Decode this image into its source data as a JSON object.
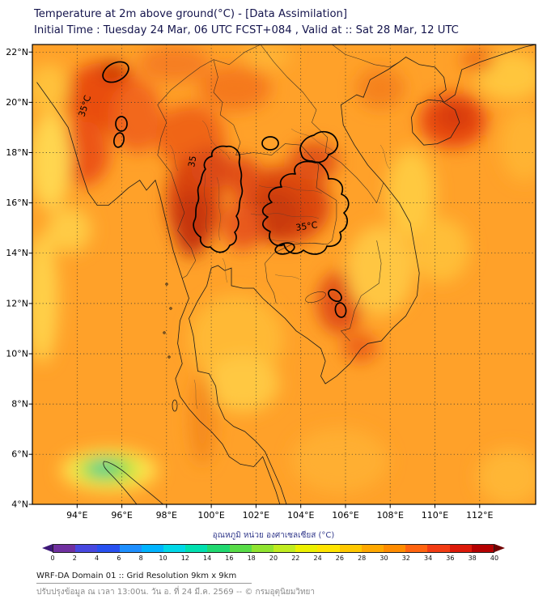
{
  "header": {
    "title": "Temperature at 2m above ground(°C) - [Data Assimilation]",
    "subtitle": "Initial Time : Tuesday 24 Mar, 06 UTC FCST+084 , Valid at :: Sat 28 Mar, 12 UTC"
  },
  "map": {
    "y_ticks": [
      "22°N",
      "20°N",
      "18°N",
      "16°N",
      "14°N",
      "12°N",
      "10°N",
      "8°N",
      "6°N",
      "4°N"
    ],
    "x_ticks": [
      "94°E",
      "96°E",
      "98°E",
      "100°E",
      "102°E",
      "104°E",
      "106°E",
      "108°E",
      "110°E",
      "112°E"
    ],
    "contour_labels": {
      "nw": "35°C",
      "central": "35",
      "northeast": "35°C"
    }
  },
  "colorbar": {
    "label": "อุณหภูมิ หน่วย องศาเซลเซียส (°C)",
    "ticks": [
      0,
      2,
      4,
      6,
      8,
      10,
      12,
      14,
      16,
      18,
      20,
      22,
      24,
      26,
      28,
      30,
      32,
      34,
      36,
      38,
      40
    ],
    "segment_colors": [
      "#7030A0",
      "#4848E0",
      "#2850F0",
      "#1E8FFF",
      "#00B4FF",
      "#00D8E8",
      "#00E0B0",
      "#20D870",
      "#58DC48",
      "#90E430",
      "#C0EC20",
      "#ECF000",
      "#FFE400",
      "#FFC800",
      "#FFA800",
      "#FF8C00",
      "#FF6410",
      "#F23C14",
      "#DC1A0A",
      "#B40000"
    ],
    "arrow_left_color": "#3D1878",
    "arrow_right_color": "#700000"
  },
  "footer": {
    "line1": "WRF-DA Domain 01 :: Grid Resolution 9km x 9km",
    "line2": "ปรับปรุงข้อมูล ณ เวลา 13:00น. วัน อ. ที่ 24 มี.ค. 2569 -- © กรมอุตุนิยมวิทยา"
  },
  "chart_data": {
    "type": "heatmap",
    "title": "Temperature at 2m above ground (°C) - WRF-DA forecast map",
    "x_axis": {
      "label": "longitude",
      "ticks": [
        "94°E",
        "96°E",
        "98°E",
        "100°E",
        "102°E",
        "104°E",
        "106°E",
        "108°E",
        "110°E",
        "112°E"
      ]
    },
    "y_axis": {
      "label": "latitude",
      "ticks": [
        "4°N",
        "6°N",
        "8°N",
        "10°N",
        "12°N",
        "14°N",
        "16°N",
        "18°N",
        "20°N",
        "22°N"
      ]
    },
    "colorbar": {
      "min": 0,
      "max": 40,
      "step": 2,
      "units": "°C"
    },
    "contour_highlight": {
      "level_c": 35,
      "regions": [
        "small pockets in central Myanmar",
        "western and central Thailand",
        "northeast Thailand (Isan) toward southern Laos",
        "small pockets near the Cambodia–Vietnam border"
      ]
    },
    "field_summary": [
      {
        "area": "most of domain (land)",
        "approx_temp_c": "30-34"
      },
      {
        "area": "western/central Thailand",
        "approx_temp_c": "35-36"
      },
      {
        "area": "northeast Thailand",
        "approx_temp_c": "35-36"
      },
      {
        "area": "central Myanmar interior",
        "approx_temp_c": "34-36"
      },
      {
        "area": "Gulf of Thailand and coastal seas",
        "approx_temp_c": "26-30"
      },
      {
        "area": "northern Sumatra highlands (bottom-left green spot)",
        "approx_temp_c": "14-20"
      },
      {
        "area": "Hainan island area (top-right red spot)",
        "approx_temp_c": "33-35"
      }
    ],
    "legend_position": "bottom",
    "grid": true
  }
}
